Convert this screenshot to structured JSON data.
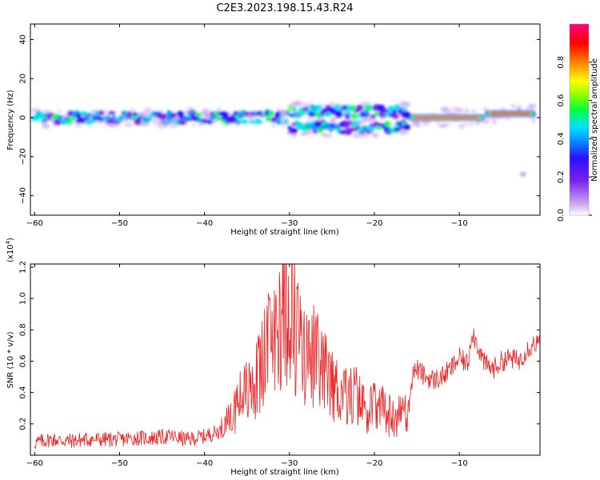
{
  "title": "C2E3.2023.198.15.43.R24",
  "chart_data": [
    {
      "type": "heatmap",
      "xlabel": "Height of straight line (km)",
      "ylabel": "Frequency (Hz)",
      "xlim": [
        -60.5,
        -0.5
      ],
      "ylim": [
        -50,
        48
      ],
      "xticks": [
        -60,
        -50,
        -40,
        -30,
        -20,
        -10
      ],
      "yticks": [
        -40,
        -20,
        0,
        20,
        40
      ],
      "colorbar": {
        "label": "Normalized spectral amplitude",
        "range": [
          0,
          1
        ],
        "ticks": [
          0.0,
          0.2,
          0.4,
          0.6,
          0.8
        ],
        "colors": [
          "#ffffff",
          "#c9a6f0",
          "#7a22ee",
          "#2a10ff",
          "#00a0ff",
          "#00e0ff",
          "#00ff40",
          "#80ff00",
          "#ffff00",
          "#ff8000",
          "#ff0000",
          "#ff0080"
        ]
      },
      "bands": [
        {
          "x_start": -60,
          "x_end": -30,
          "freq": 0,
          "amplitude": 0.25
        },
        {
          "x_start": -30,
          "x_end": -24,
          "freq": 3,
          "amplitude": 0.3
        },
        {
          "x_start": -30,
          "x_end": -16,
          "freq": -5,
          "amplitude": 0.3
        },
        {
          "x_start": -24,
          "x_end": -16,
          "freq": 3,
          "amplitude": 0.3
        },
        {
          "x_start": -16,
          "x_end": -7,
          "freq": 0,
          "amplitude": 0.9
        },
        {
          "x_start": -7,
          "x_end": -1,
          "freq": 2,
          "amplitude": 0.85
        }
      ],
      "grid": false
    },
    {
      "type": "line",
      "xlabel": "Height of straight line (km)",
      "ylabel": "SNR (10 * v/v)",
      "y_multiplier": "(x10^4)",
      "xlim": [
        -60.5,
        -0.5
      ],
      "ylim": [
        0,
        1.22
      ],
      "xticks": [
        -60,
        -50,
        -40,
        -30,
        -20,
        -10
      ],
      "yticks": [
        0.2,
        0.4,
        0.6,
        0.8,
        1.0,
        1.2
      ],
      "series": [
        {
          "color": "#ee2222",
          "x": [
            -60,
            -58,
            -56,
            -54,
            -52,
            -50,
            -48,
            -46,
            -44,
            -42,
            -40,
            -38,
            -37,
            -36,
            -35,
            -34,
            -33,
            -32,
            -31,
            -30,
            -29,
            -28,
            -27,
            -26,
            -25,
            -24,
            -23,
            -22,
            -21,
            -20,
            -19,
            -18,
            -17,
            -16,
            -15.5,
            -15,
            -14,
            -13,
            -12,
            -11,
            -10,
            -9,
            -8.5,
            -8,
            -7,
            -6,
            -5,
            -4,
            -3,
            -2,
            -1,
            -0.5
          ],
          "y": [
            0.08,
            0.1,
            0.09,
            0.1,
            0.1,
            0.1,
            0.11,
            0.11,
            0.12,
            0.1,
            0.12,
            0.16,
            0.22,
            0.35,
            0.38,
            0.45,
            0.6,
            0.72,
            0.85,
            1.0,
            0.75,
            0.6,
            0.6,
            0.5,
            0.45,
            0.4,
            0.38,
            0.35,
            0.3,
            0.3,
            0.28,
            0.25,
            0.25,
            0.28,
            0.52,
            0.55,
            0.5,
            0.48,
            0.5,
            0.55,
            0.62,
            0.58,
            0.8,
            0.72,
            0.58,
            0.55,
            0.6,
            0.62,
            0.6,
            0.68,
            0.72,
            0.7
          ]
        }
      ],
      "grid": false
    }
  ]
}
